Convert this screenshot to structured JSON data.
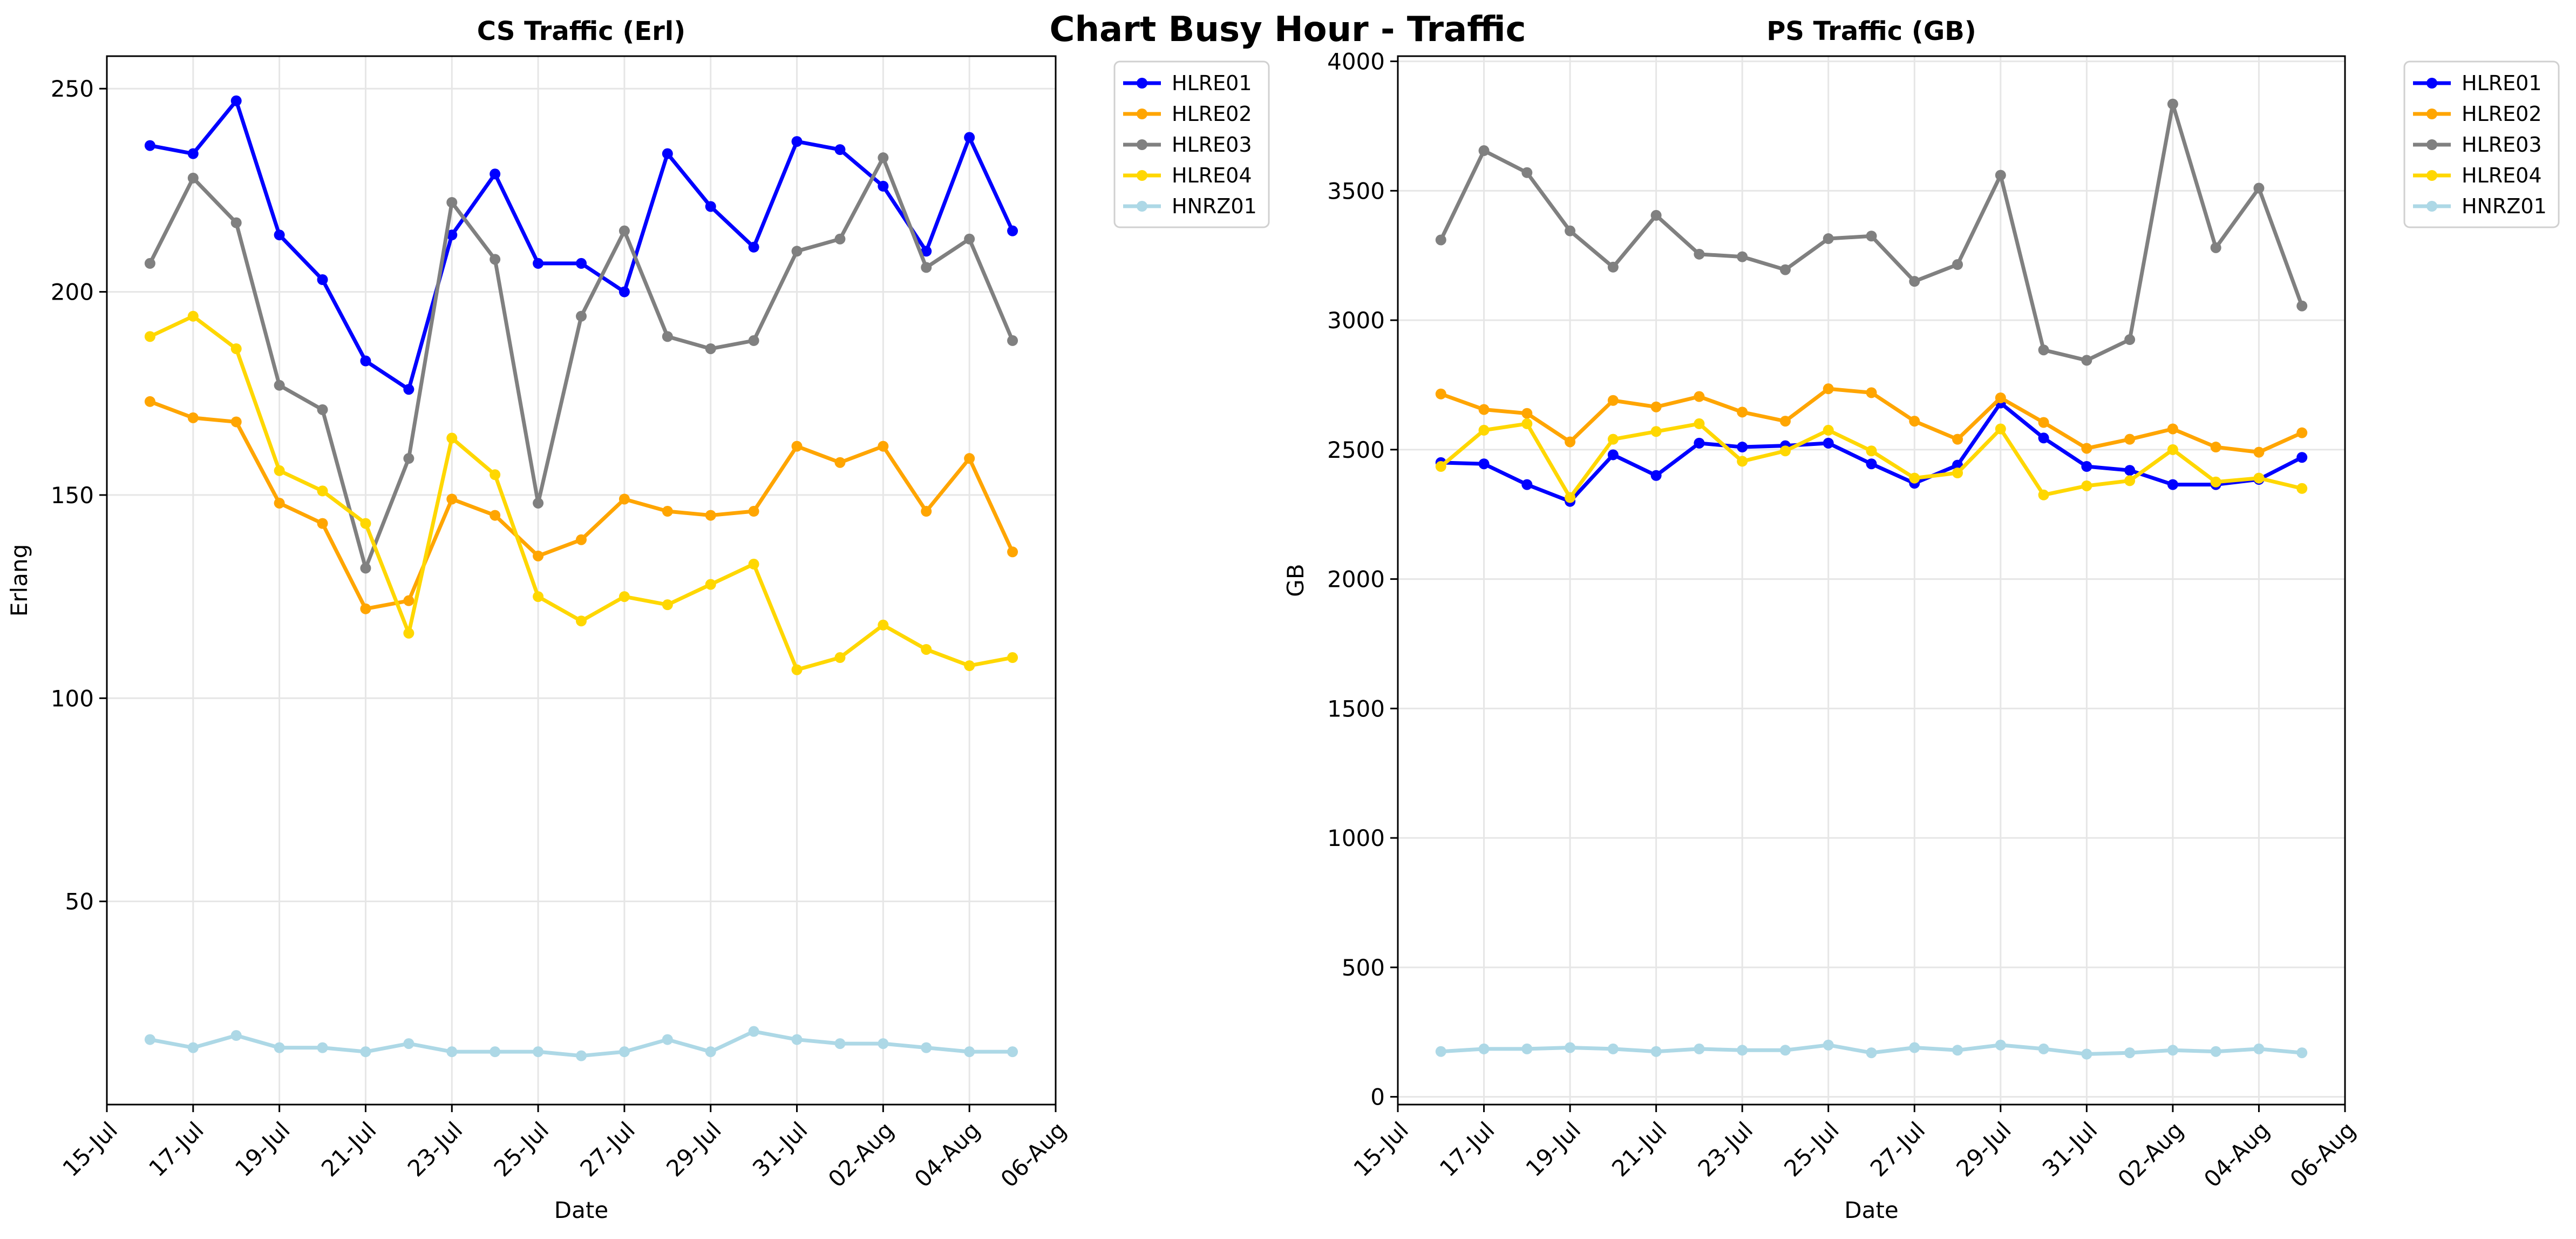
{
  "suptitle": "Chart Busy Hour - Traffic",
  "colors": {
    "HLRE01": "#0000ff",
    "HLRE02": "#ffa500",
    "HLRE03": "#808080",
    "HLRE04": "#ffd700",
    "HNRZ01": "#add8e6"
  },
  "chart_data": [
    {
      "type": "line",
      "title": "CS Traffic (Erl)",
      "xlabel": "Date",
      "ylabel": "Erlang",
      "x_axis": "date",
      "xlim": [
        "2025-07-15",
        "2025-08-06"
      ],
      "ylim": [
        0,
        258
      ],
      "yticks": [
        50,
        100,
        150,
        200,
        250
      ],
      "xticks": [
        "15-Jul",
        "17-Jul",
        "19-Jul",
        "21-Jul",
        "23-Jul",
        "25-Jul",
        "27-Jul",
        "29-Jul",
        "31-Jul",
        "02-Aug",
        "04-Aug",
        "06-Aug"
      ],
      "grid": true,
      "legend": "outside-upper-right",
      "x": [
        "2025-07-16",
        "2025-07-17",
        "2025-07-18",
        "2025-07-19",
        "2025-07-20",
        "2025-07-21",
        "2025-07-22",
        "2025-07-23",
        "2025-07-24",
        "2025-07-25",
        "2025-07-26",
        "2025-07-27",
        "2025-07-28",
        "2025-07-29",
        "2025-07-30",
        "2025-07-31",
        "2025-08-01",
        "2025-08-02",
        "2025-08-03",
        "2025-08-04",
        "2025-08-05"
      ],
      "series": [
        {
          "name": "HLRE01",
          "values": [
            236,
            234,
            247,
            214,
            203,
            183,
            176,
            214,
            229,
            207,
            207,
            200,
            234,
            221,
            211,
            237,
            235,
            226,
            210,
            238,
            215
          ]
        },
        {
          "name": "HLRE02",
          "values": [
            173,
            169,
            168,
            148,
            143,
            122,
            124,
            149,
            145,
            135,
            139,
            149,
            146,
            145,
            146,
            162,
            158,
            162,
            146,
            159,
            136
          ]
        },
        {
          "name": "HLRE03",
          "values": [
            207,
            228,
            217,
            177,
            171,
            132,
            159,
            222,
            208,
            148,
            194,
            215,
            189,
            186,
            188,
            210,
            213,
            233,
            206,
            213,
            188
          ]
        },
        {
          "name": "HLRE04",
          "values": [
            189,
            194,
            186,
            156,
            151,
            143,
            116,
            164,
            155,
            125,
            119,
            125,
            123,
            128,
            133,
            107,
            110,
            118,
            112,
            108,
            110
          ]
        },
        {
          "name": "HNRZ01",
          "values": [
            16,
            14,
            17,
            14,
            14,
            13,
            15,
            13,
            13,
            13,
            12,
            13,
            16,
            13,
            18,
            16,
            15,
            15,
            14,
            13,
            13
          ]
        }
      ]
    },
    {
      "type": "line",
      "title": "PS Traffic (GB)",
      "xlabel": "Date",
      "ylabel": "GB",
      "x_axis": "date",
      "xlim": [
        "2025-07-15",
        "2025-08-06"
      ],
      "ylim": [
        -30,
        4020
      ],
      "yticks": [
        0,
        500,
        1000,
        1500,
        2000,
        2500,
        3000,
        3500,
        4000
      ],
      "xticks": [
        "15-Jul",
        "17-Jul",
        "19-Jul",
        "21-Jul",
        "23-Jul",
        "25-Jul",
        "27-Jul",
        "29-Jul",
        "31-Jul",
        "02-Aug",
        "04-Aug",
        "06-Aug"
      ],
      "grid": true,
      "legend": "outside-upper-right",
      "x": [
        "2025-07-16",
        "2025-07-17",
        "2025-07-18",
        "2025-07-19",
        "2025-07-20",
        "2025-07-21",
        "2025-07-22",
        "2025-07-23",
        "2025-07-24",
        "2025-07-25",
        "2025-07-26",
        "2025-07-27",
        "2025-07-28",
        "2025-07-29",
        "2025-07-30",
        "2025-07-31",
        "2025-08-01",
        "2025-08-02",
        "2025-08-03",
        "2025-08-04",
        "2025-08-05"
      ],
      "series": [
        {
          "name": "HLRE01",
          "values": [
            2450,
            2445,
            2365,
            2300,
            2480,
            2400,
            2525,
            2510,
            2515,
            2525,
            2445,
            2370,
            2440,
            2680,
            2545,
            2435,
            2420,
            2365,
            2365,
            2385,
            2470
          ]
        },
        {
          "name": "HLRE02",
          "values": [
            2715,
            2655,
            2640,
            2530,
            2690,
            2665,
            2705,
            2645,
            2610,
            2735,
            2720,
            2610,
            2540,
            2700,
            2605,
            2505,
            2540,
            2580,
            2510,
            2490,
            2565
          ]
        },
        {
          "name": "HLRE03",
          "values": [
            3310,
            3655,
            3570,
            3345,
            3205,
            3405,
            3255,
            3245,
            3195,
            3315,
            3325,
            3150,
            3215,
            3560,
            2885,
            2845,
            2925,
            3835,
            3280,
            3510,
            3055
          ]
        },
        {
          "name": "HLRE04",
          "values": [
            2435,
            2575,
            2600,
            2315,
            2540,
            2570,
            2600,
            2455,
            2495,
            2575,
            2495,
            2390,
            2410,
            2580,
            2325,
            2360,
            2380,
            2500,
            2375,
            2390,
            2350
          ]
        },
        {
          "name": "HNRZ01",
          "values": [
            175,
            185,
            185,
            190,
            185,
            175,
            185,
            180,
            180,
            200,
            170,
            190,
            180,
            200,
            185,
            165,
            170,
            180,
            175,
            185,
            170
          ]
        }
      ]
    }
  ]
}
